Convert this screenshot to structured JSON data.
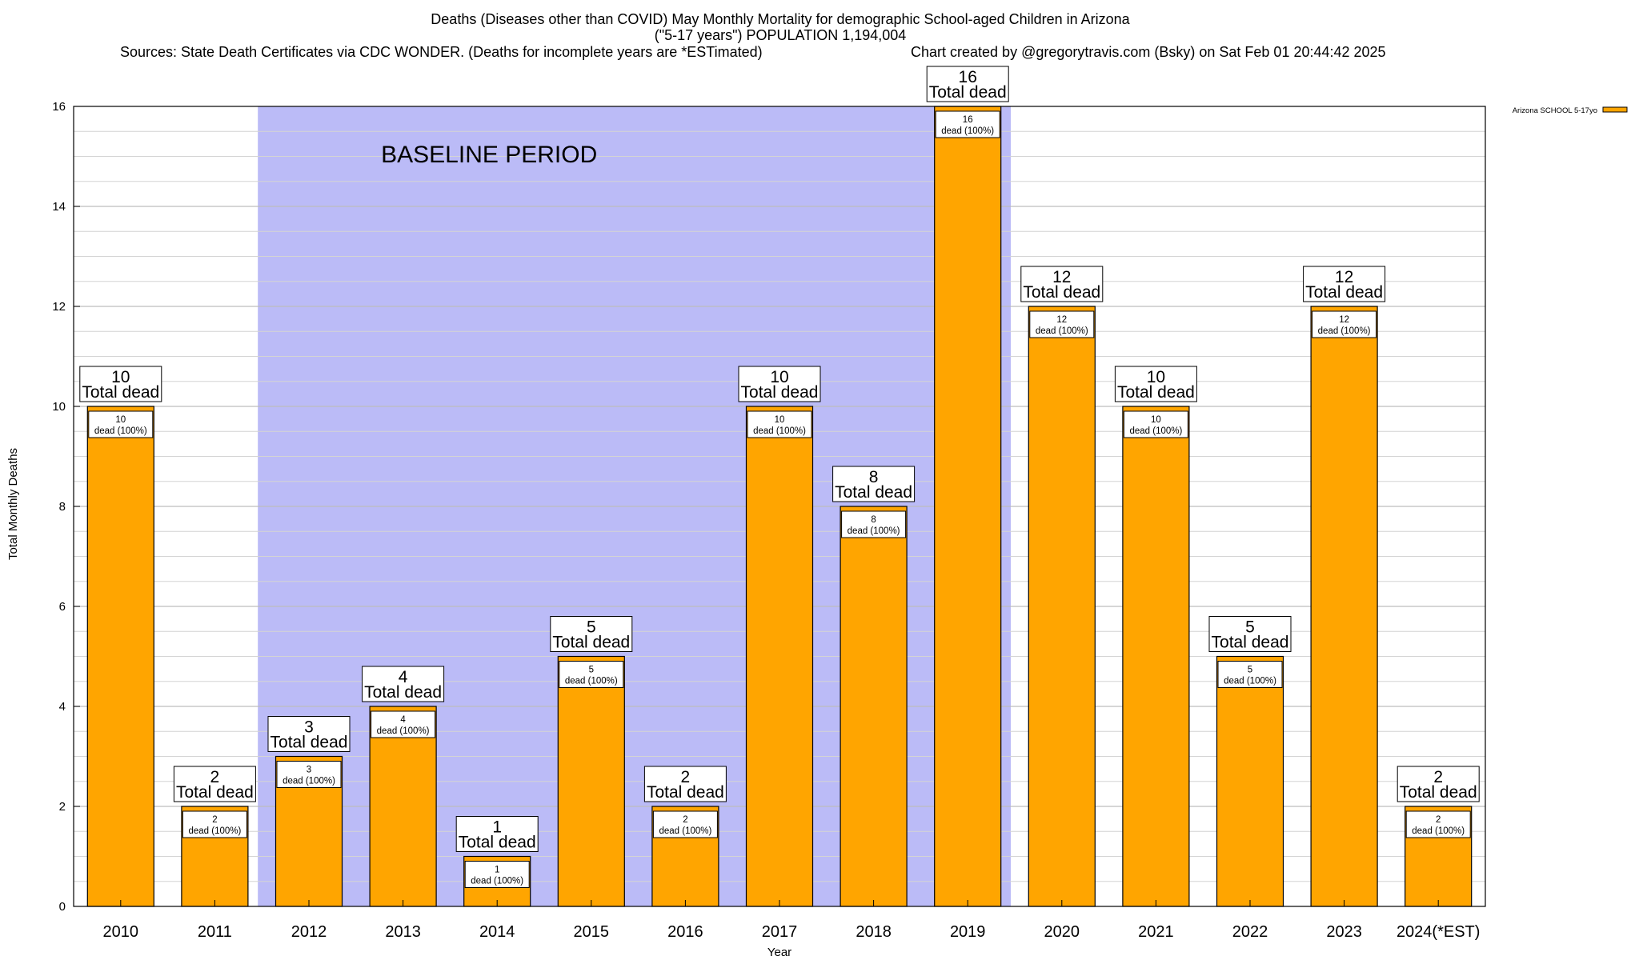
{
  "chart_data": {
    "type": "bar",
    "title_lines": [
      "Deaths (Diseases other than COVID) May Monthly Mortality for demographic School-aged Children in Arizona",
      "(\"5-17 years\") POPULATION 1,194,004"
    ],
    "sources": "Sources: State Death Certificates via CDC WONDER. (Deaths for incomplete years are *ESTimated)",
    "credit": "Chart created by @gregorytravis.com (Bsky) on Sat Feb 01 20:44:42 2025",
    "xlabel": "Year",
    "ylabel": "Total Monthly Deaths",
    "ylim": [
      0,
      16
    ],
    "y_ticks": [
      0,
      2,
      4,
      6,
      8,
      10,
      12,
      14,
      16
    ],
    "categories": [
      "2010",
      "2011",
      "2012",
      "2013",
      "2014",
      "2015",
      "2016",
      "2017",
      "2018",
      "2019",
      "2020",
      "2021",
      "2022",
      "2023",
      "2024(*EST)"
    ],
    "series": [
      {
        "name": "Arizona SCHOOL 5-17yo",
        "color": "#FFA500",
        "values": [
          10,
          2,
          3,
          4,
          1,
          5,
          2,
          10,
          8,
          16,
          12,
          10,
          5,
          12,
          2
        ]
      }
    ],
    "total_label_suffix": "Total dead",
    "inner_label_suffix": "dead (100%)",
    "baseline": {
      "label": "BASELINE PERIOD",
      "from": "2012",
      "to": "2019",
      "color": "#BBBBF7"
    },
    "grid": true,
    "legend_position": "top-right"
  }
}
